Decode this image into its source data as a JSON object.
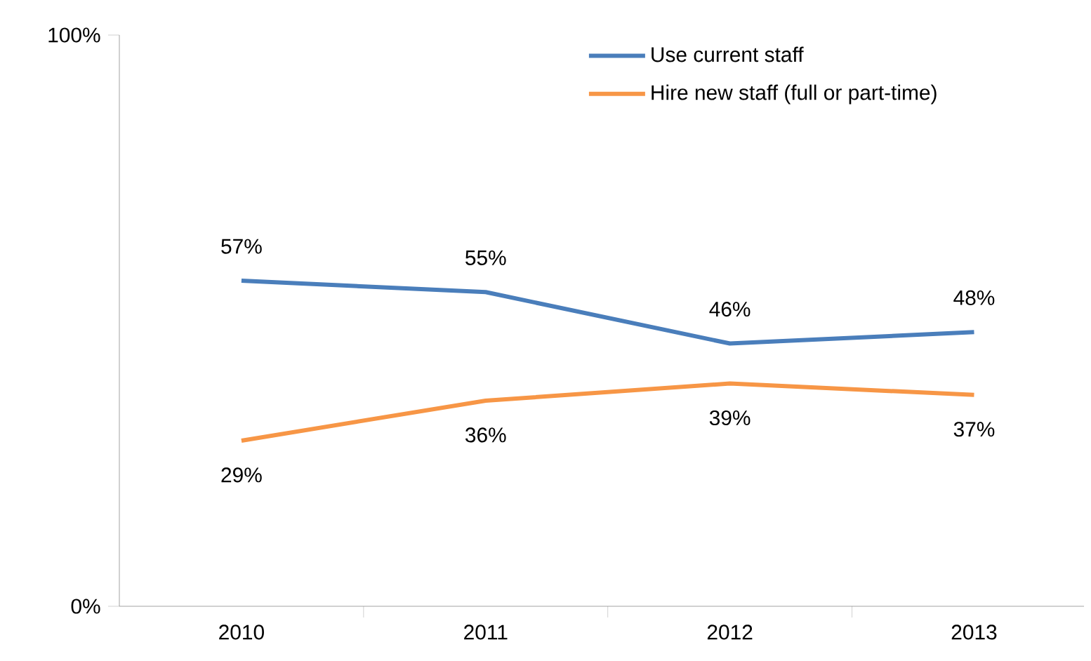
{
  "chart_data": {
    "type": "line",
    "categories": [
      "2010",
      "2011",
      "2012",
      "2013"
    ],
    "series": [
      {
        "name": "Use current staff",
        "color": "#4a7ebb",
        "values": [
          57,
          55,
          46,
          48
        ],
        "value_labels": [
          "57%",
          "55%",
          "46%",
          "48%"
        ]
      },
      {
        "name": "Hire new staff (full or part-time)",
        "color": "#f79646",
        "values": [
          29,
          36,
          39,
          37
        ],
        "value_labels": [
          "29%",
          "36%",
          "39%",
          "37%"
        ]
      }
    ],
    "ylim": [
      0,
      100
    ],
    "yticks": [
      {
        "value": 0,
        "label": "0%"
      },
      {
        "value": 100,
        "label": "100%"
      }
    ],
    "grid": false,
    "legend": "top right",
    "marker": "none",
    "line_style": "solid"
  }
}
